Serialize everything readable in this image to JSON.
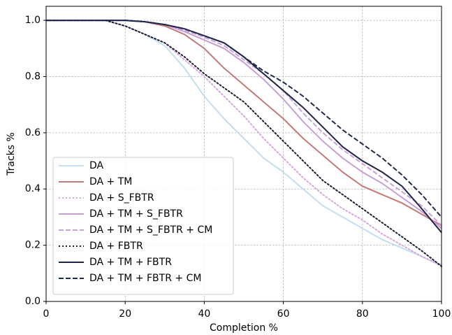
{
  "chart_data": {
    "type": "line",
    "xlabel": "Completion %",
    "ylabel": "Tracks %",
    "x": [
      0,
      5,
      10,
      15,
      20,
      25,
      30,
      35,
      40,
      45,
      50,
      55,
      60,
      65,
      70,
      75,
      80,
      85,
      90,
      95,
      100
    ],
    "xlim": [
      0,
      100
    ],
    "xticks": [
      0,
      20,
      40,
      60,
      80,
      100
    ],
    "ylim": [
      0,
      1.05
    ],
    "yticks": [
      {
        "value": 0,
        "label": "0.0"
      },
      0.2,
      0.4,
      0.6,
      0.8,
      {
        "value": 1,
        "label": "1.0"
      }
    ],
    "grid": true,
    "legend": "lower left",
    "series": [
      {
        "name": "DA",
        "color": "#c3dff0",
        "style": "solid",
        "values": [
          1,
          1,
          1,
          1,
          0.98,
          0.95,
          0.91,
          0.83,
          0.73,
          0.65,
          0.58,
          0.51,
          0.46,
          0.4,
          0.34,
          0.3,
          0.26,
          0.22,
          0.19,
          0.16,
          0.125
        ]
      },
      {
        "name": "DA + TM",
        "color": "#c47a78",
        "style": "solid",
        "values": [
          1,
          1,
          1,
          1,
          1,
          0.995,
          0.98,
          0.95,
          0.9,
          0.83,
          0.77,
          0.71,
          0.65,
          0.58,
          0.52,
          0.46,
          0.41,
          0.38,
          0.35,
          0.31,
          0.27
        ]
      },
      {
        "name": "DA + S_FBTR",
        "color": "#d8a6dc",
        "style": "dotted",
        "values": [
          1,
          1,
          1,
          1,
          0.98,
          0.95,
          0.92,
          0.86,
          0.8,
          0.73,
          0.66,
          0.58,
          0.51,
          0.44,
          0.38,
          0.33,
          0.29,
          0.24,
          0.2,
          0.16,
          0.13
        ]
      },
      {
        "name": "DA + TM + S_FBTR",
        "color": "#c79fd8",
        "style": "solid",
        "values": [
          1,
          1,
          1,
          1,
          1,
          0.995,
          0.985,
          0.96,
          0.93,
          0.9,
          0.85,
          0.79,
          0.72,
          0.64,
          0.57,
          0.51,
          0.46,
          0.42,
          0.37,
          0.32,
          0.26
        ]
      },
      {
        "name": "DA + TM + S_FBTR + CM",
        "color": "#c9a2da",
        "style": "dashed",
        "values": [
          1,
          1,
          1,
          1,
          1,
          0.995,
          0.985,
          0.965,
          0.94,
          0.91,
          0.86,
          0.81,
          0.75,
          0.67,
          0.6,
          0.54,
          0.49,
          0.44,
          0.39,
          0.34,
          0.27
        ]
      },
      {
        "name": "DA + FBTR",
        "color": "#1d1d33",
        "style": "dotted",
        "values": [
          1,
          1,
          1,
          1,
          0.98,
          0.95,
          0.92,
          0.87,
          0.81,
          0.76,
          0.71,
          0.64,
          0.57,
          0.5,
          0.43,
          0.38,
          0.33,
          0.28,
          0.23,
          0.18,
          0.125
        ]
      },
      {
        "name": "DA + TM + FBTR",
        "color": "#1f2546",
        "style": "solid",
        "values": [
          1,
          1,
          1,
          1,
          1,
          0.995,
          0.985,
          0.97,
          0.945,
          0.92,
          0.87,
          0.81,
          0.75,
          0.69,
          0.62,
          0.55,
          0.5,
          0.46,
          0.41,
          0.33,
          0.245
        ]
      },
      {
        "name": "DA + TM + FBTR + CM",
        "color": "#1f2a4a",
        "style": "dashed",
        "values": [
          1,
          1,
          1,
          1,
          1,
          0.995,
          0.985,
          0.97,
          0.945,
          0.92,
          0.87,
          0.82,
          0.78,
          0.73,
          0.67,
          0.61,
          0.56,
          0.51,
          0.45,
          0.38,
          0.3
        ]
      }
    ]
  }
}
